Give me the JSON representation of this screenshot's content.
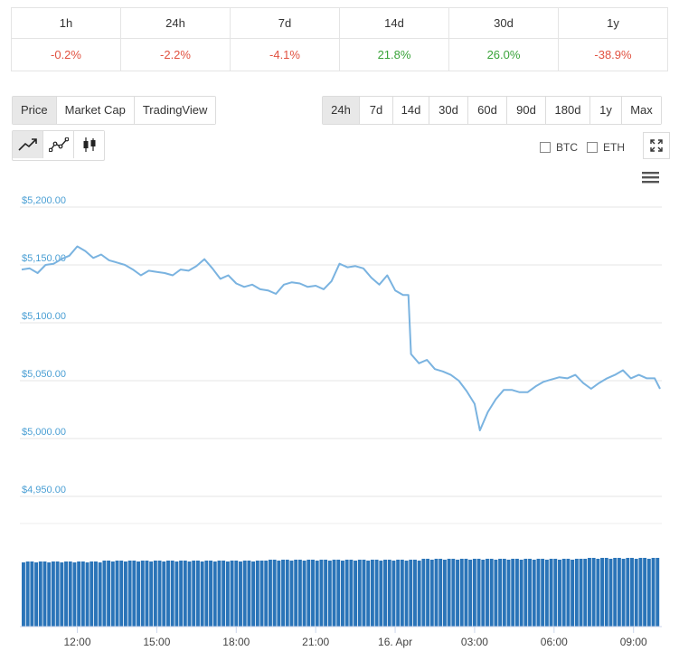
{
  "performance": [
    {
      "period": "1h",
      "change": "-0.2%",
      "trend": "neg"
    },
    {
      "period": "24h",
      "change": "-2.2%",
      "trend": "neg"
    },
    {
      "period": "7d",
      "change": "-4.1%",
      "trend": "neg"
    },
    {
      "period": "14d",
      "change": "21.8%",
      "trend": "pos"
    },
    {
      "period": "30d",
      "change": "26.0%",
      "trend": "pos"
    },
    {
      "period": "1y",
      "change": "-38.9%",
      "trend": "neg"
    }
  ],
  "chart_type_tabs": [
    "Price",
    "Market Cap",
    "TradingView"
  ],
  "active_chart_type": "Price",
  "range_tabs": [
    "24h",
    "7d",
    "14d",
    "30d",
    "60d",
    "90d",
    "180d",
    "1y",
    "Max"
  ],
  "active_range": "24h",
  "chart_modes": [
    "line-chart-icon",
    "ohlc-line-icon",
    "candlestick-icon"
  ],
  "compare": {
    "btc_label": "BTC",
    "eth_label": "ETH"
  },
  "icons": {
    "fullscreen": "expand-icon",
    "menu": "hamburger-menu-icon"
  },
  "colors": {
    "line": "#7ab3e0",
    "volume": "#2a74b8",
    "negative": "#e15241",
    "positive": "#3aa33a",
    "axis_label": "#4a9fd4"
  },
  "chart_data": {
    "type": "line",
    "y_axis_labels": [
      "$5,200.00",
      "$5,150.00",
      "$5,100.00",
      "$5,050.00",
      "$5,000.00",
      "$4,950.00"
    ],
    "y_axis_values": [
      5200,
      5150,
      5100,
      5050,
      5000,
      4950
    ],
    "ylim": [
      4950,
      5200
    ],
    "x_axis_labels": [
      "12:00",
      "15:00",
      "18:00",
      "21:00",
      "16. Apr",
      "03:00",
      "06:00",
      "09:00"
    ],
    "x_hours": [
      12,
      15,
      18,
      21,
      24,
      27,
      30,
      33
    ],
    "xlim": [
      9.9,
      34.0
    ],
    "series": [
      {
        "values": [
          [
            9.9,
            5146
          ],
          [
            10.2,
            5147
          ],
          [
            10.5,
            5143
          ],
          [
            10.8,
            5150
          ],
          [
            11.1,
            5151
          ],
          [
            11.4,
            5155
          ],
          [
            11.7,
            5158
          ],
          [
            12.0,
            5166
          ],
          [
            12.3,
            5162
          ],
          [
            12.6,
            5156
          ],
          [
            12.9,
            5159
          ],
          [
            13.2,
            5154
          ],
          [
            13.5,
            5152
          ],
          [
            13.8,
            5150
          ],
          [
            14.1,
            5146
          ],
          [
            14.4,
            5141
          ],
          [
            14.7,
            5145
          ],
          [
            15.0,
            5144
          ],
          [
            15.3,
            5143
          ],
          [
            15.6,
            5141
          ],
          [
            15.9,
            5146
          ],
          [
            16.2,
            5145
          ],
          [
            16.5,
            5149
          ],
          [
            16.8,
            5155
          ],
          [
            17.1,
            5147
          ],
          [
            17.4,
            5138
          ],
          [
            17.7,
            5141
          ],
          [
            18.0,
            5134
          ],
          [
            18.3,
            5131
          ],
          [
            18.6,
            5133
          ],
          [
            18.9,
            5129
          ],
          [
            19.2,
            5128
          ],
          [
            19.5,
            5125
          ],
          [
            19.8,
            5133
          ],
          [
            20.1,
            5135
          ],
          [
            20.4,
            5134
          ],
          [
            20.7,
            5131
          ],
          [
            21.0,
            5132
          ],
          [
            21.3,
            5129
          ],
          [
            21.6,
            5136
          ],
          [
            21.9,
            5151
          ],
          [
            22.2,
            5148
          ],
          [
            22.5,
            5149
          ],
          [
            22.8,
            5147
          ],
          [
            23.1,
            5139
          ],
          [
            23.4,
            5133
          ],
          [
            23.7,
            5141
          ],
          [
            24.0,
            5128
          ],
          [
            24.3,
            5124
          ],
          [
            24.5,
            5124
          ],
          [
            24.6,
            5073
          ],
          [
            24.9,
            5065
          ],
          [
            25.2,
            5068
          ],
          [
            25.5,
            5060
          ],
          [
            25.8,
            5058
          ],
          [
            26.1,
            5055
          ],
          [
            26.4,
            5050
          ],
          [
            26.7,
            5041
          ],
          [
            27.0,
            5030
          ],
          [
            27.2,
            5007
          ],
          [
            27.5,
            5023
          ],
          [
            27.8,
            5034
          ],
          [
            28.1,
            5042
          ],
          [
            28.4,
            5042
          ],
          [
            28.7,
            5040
          ],
          [
            29.0,
            5040
          ],
          [
            29.3,
            5045
          ],
          [
            29.6,
            5049
          ],
          [
            29.9,
            5051
          ],
          [
            30.2,
            5053
          ],
          [
            30.5,
            5052
          ],
          [
            30.8,
            5055
          ],
          [
            31.1,
            5048
          ],
          [
            31.4,
            5043
          ],
          [
            31.7,
            5048
          ],
          [
            32.0,
            5052
          ],
          [
            32.3,
            5055
          ],
          [
            32.6,
            5059
          ],
          [
            32.9,
            5052
          ],
          [
            33.2,
            5055
          ],
          [
            33.5,
            5052
          ],
          [
            33.8,
            5052
          ],
          [
            34.0,
            5043
          ]
        ]
      }
    ],
    "volume_bars": 150
  }
}
